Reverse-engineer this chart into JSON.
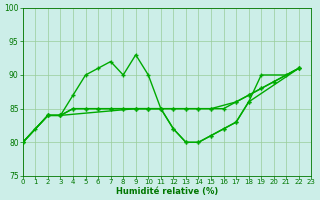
{
  "background_color": "#cceee8",
  "grid_color": "#99cc99",
  "line_color": "#00aa00",
  "xlabel": "Humidité relative (%)",
  "xlabel_color": "#007700",
  "tick_color": "#007700",
  "xlim": [
    0,
    23
  ],
  "ylim": [
    75,
    100
  ],
  "yticks": [
    75,
    80,
    85,
    90,
    95,
    100
  ],
  "xticks": [
    0,
    1,
    2,
    3,
    4,
    5,
    6,
    7,
    8,
    9,
    10,
    11,
    12,
    13,
    14,
    15,
    16,
    17,
    18,
    19,
    20,
    21,
    22,
    23
  ],
  "s1_x": [
    0,
    1,
    2,
    3,
    4,
    5,
    6,
    7,
    8,
    9,
    10,
    11,
    12,
    13,
    14,
    15,
    16,
    17,
    18,
    19,
    21,
    22
  ],
  "s1_y": [
    80,
    82,
    84,
    84,
    87,
    90,
    91,
    92,
    90,
    93,
    90,
    85,
    82,
    80,
    80,
    81,
    82,
    83,
    86,
    90,
    90,
    91
  ],
  "s2_x": [
    0,
    2,
    3,
    4,
    5,
    6,
    7,
    8,
    9,
    10,
    11,
    12,
    13,
    14,
    15,
    17,
    18,
    19,
    20,
    22
  ],
  "s2_y": [
    80,
    84,
    84,
    85,
    85,
    85,
    85,
    85,
    85,
    85,
    85,
    85,
    85,
    85,
    85,
    86,
    87,
    88,
    89,
    91
  ],
  "s3_x": [
    0,
    2,
    3,
    4,
    5,
    6,
    7,
    8,
    9,
    10,
    11,
    12,
    13,
    14,
    15,
    16,
    17,
    18,
    19,
    20,
    22
  ],
  "s3_y": [
    80,
    84,
    84,
    85,
    85,
    85,
    85,
    85,
    85,
    85,
    85,
    85,
    85,
    85,
    85,
    85,
    86,
    87,
    88,
    89,
    91
  ],
  "s4_x": [
    0,
    2,
    3,
    9,
    10,
    11,
    12,
    13,
    14,
    15,
    16,
    17,
    18,
    22
  ],
  "s4_y": [
    80,
    84,
    84,
    85,
    85,
    85,
    82,
    80,
    80,
    81,
    82,
    83,
    86,
    91
  ]
}
